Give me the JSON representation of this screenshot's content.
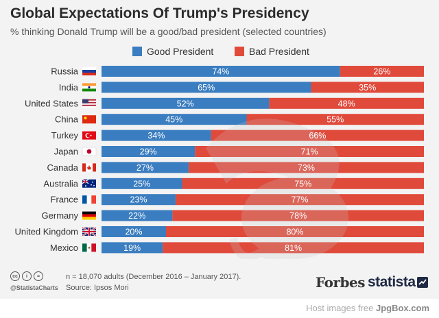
{
  "header": {
    "title": "Global Expectations Of Trump's Presidency",
    "subtitle": "% thinking Donald Trump will be a good/bad president (selected countries)"
  },
  "colors": {
    "good": "#3a7dc0",
    "bad": "#e04a3b",
    "watermark": "#c9c9c9"
  },
  "chart_data": {
    "type": "bar",
    "orientation": "horizontal",
    "stacked": true,
    "categories": [
      "Russia",
      "India",
      "United States",
      "China",
      "Turkey",
      "Japan",
      "Canada",
      "Australia",
      "France",
      "Germany",
      "United Kingdom",
      "Mexico"
    ],
    "category_icons": [
      "russia-flag-icon",
      "india-flag-icon",
      "usa-flag-icon",
      "china-flag-icon",
      "turkey-flag-icon",
      "japan-flag-icon",
      "canada-flag-icon",
      "australia-flag-icon",
      "france-flag-icon",
      "germany-flag-icon",
      "uk-flag-icon",
      "mexico-flag-icon"
    ],
    "series": [
      {
        "name": "Good President",
        "values": [
          74,
          65,
          52,
          45,
          34,
          29,
          27,
          25,
          23,
          22,
          20,
          19
        ]
      },
      {
        "name": "Bad President",
        "values": [
          26,
          35,
          48,
          55,
          66,
          71,
          73,
          75,
          77,
          78,
          80,
          81
        ]
      }
    ],
    "value_suffix": "%",
    "xlim": [
      0,
      100
    ],
    "legend_position": "top-center",
    "grid": false
  },
  "footer": {
    "license_icons": [
      "cc-icon",
      "by-icon",
      "nd-icon"
    ],
    "license_labels": [
      "cc",
      "i",
      "="
    ],
    "handle": "@StatistaCharts",
    "note": "n = 18,070 adults (December 2016 – January 2017).",
    "source": "Source: Ipsos Mori",
    "forbes": "Forbes",
    "statista": "statista",
    "host_prefix": "Host images free ",
    "host_brand": "JpgBox.com"
  }
}
